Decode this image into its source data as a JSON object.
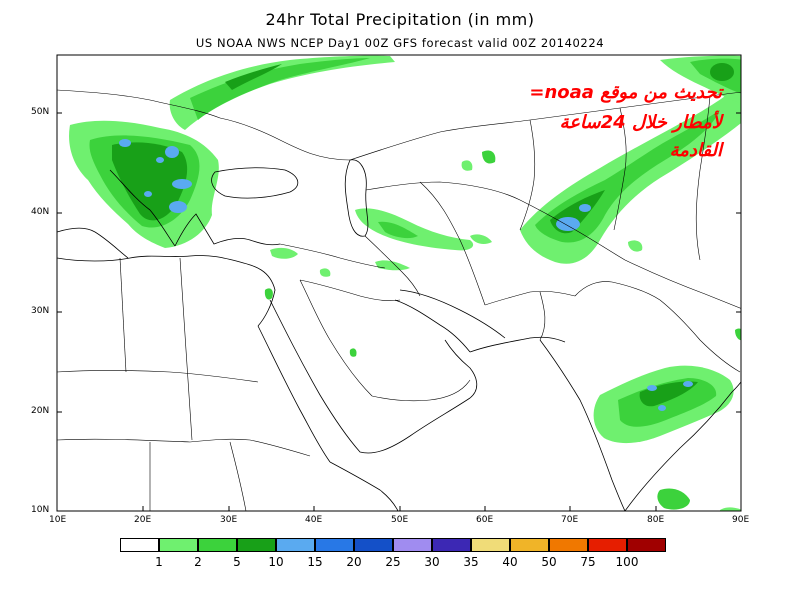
{
  "title": "24hr Total Precipitation (in mm)",
  "subtitle": "US NOAA NWS NCEP Day1 00Z GFS forecast valid 00Z 20140224",
  "annotation": {
    "line1": "تحديث من موقع noaa=",
    "line2": "لأمطار خلال 24ساعة",
    "line3": "القادمة",
    "color": "#ff0000"
  },
  "latitude_labels": [
    "50N",
    "40N",
    "30N",
    "20N",
    "10N"
  ],
  "longitude_labels": [
    "10E",
    "20E",
    "30E",
    "40E",
    "50E",
    "60E",
    "70E",
    "80E",
    "90E"
  ],
  "map_extent": {
    "lon": [
      10,
      90
    ],
    "lat": [
      10,
      56
    ]
  },
  "legend": {
    "thresholds": [
      "1",
      "2",
      "5",
      "10",
      "15",
      "20",
      "25",
      "30",
      "35",
      "40",
      "50",
      "75",
      "100"
    ],
    "colors": [
      "#ffffff",
      "#6ff06f",
      "#3cd23c",
      "#18a018",
      "#5aaaf0",
      "#2878e6",
      "#1450c8",
      "#a08cf0",
      "#3c28b4",
      "#f0dc78",
      "#f0b428",
      "#f07800",
      "#e61e00",
      "#a00000"
    ]
  },
  "precip_colors": {
    "light": "#6ff06f",
    "medium": "#3cd23c",
    "heavy": "#18a018",
    "blue": "#5aaaf0"
  }
}
